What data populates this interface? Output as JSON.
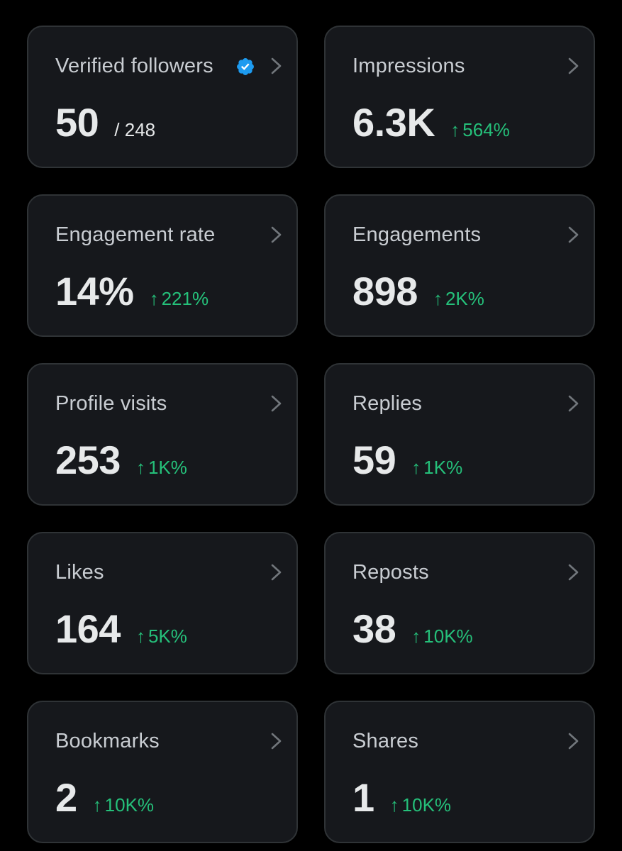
{
  "colors": {
    "background": "#000000",
    "card": "#16181c",
    "card_border": "#2f3336",
    "label": "#c9cdd2",
    "value": "#e7e9ea",
    "positive": "#25c07a",
    "verified": "#1d9bf0"
  },
  "cards": [
    {
      "title": "Verified followers",
      "value": "50",
      "sub": "/ 248",
      "change": "",
      "icon": "verified-badge-icon"
    },
    {
      "title": "Impressions",
      "value": "6.3K",
      "change": "564%"
    },
    {
      "title": "Engagement rate",
      "value": "14%",
      "change": "221%"
    },
    {
      "title": "Engagements",
      "value": "898",
      "change": "2K%"
    },
    {
      "title": "Profile visits",
      "value": "253",
      "change": "1K%"
    },
    {
      "title": "Replies",
      "value": "59",
      "change": "1K%"
    },
    {
      "title": "Likes",
      "value": "164",
      "change": "5K%"
    },
    {
      "title": "Reposts",
      "value": "38",
      "change": "10K%"
    },
    {
      "title": "Bookmarks",
      "value": "2",
      "change": "10K%"
    },
    {
      "title": "Shares",
      "value": "1",
      "change": "10K%"
    }
  ],
  "icons": {
    "arrow": "↑",
    "chevron": "chevron-right-icon",
    "change_arrow": "arrow-up-icon"
  }
}
